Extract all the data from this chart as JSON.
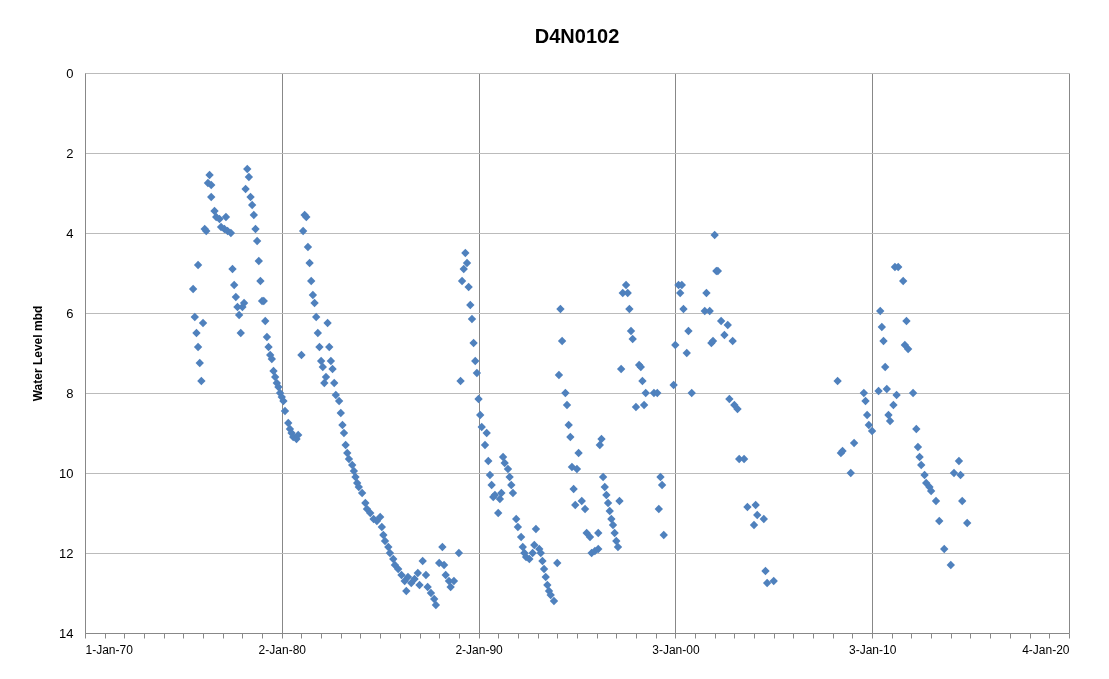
{
  "chart_data": {
    "type": "scatter",
    "title": "D4N0102",
    "ylabel": "Water Level mbd",
    "xlim": [
      "1970-01-01",
      "2020-01-04"
    ],
    "ylim": [
      14,
      0
    ],
    "yticks": [
      0,
      2,
      4,
      6,
      8,
      10,
      12,
      14
    ],
    "xticks": [
      {
        "value": "1970-01-01",
        "label": "1-Jan-70"
      },
      {
        "value": "1971-01-01",
        "label": null
      },
      {
        "value": "1972-01-01",
        "label": null
      },
      {
        "value": "1973-01-01",
        "label": null
      },
      {
        "value": "1974-01-01",
        "label": null
      },
      {
        "value": "1975-01-01",
        "label": null
      },
      {
        "value": "1976-01-01",
        "label": null
      },
      {
        "value": "1977-01-01",
        "label": null
      },
      {
        "value": "1978-01-01",
        "label": null
      },
      {
        "value": "1979-01-01",
        "label": null
      },
      {
        "value": "1980-01-02",
        "label": "2-Jan-80"
      },
      {
        "value": "1981-01-01",
        "label": null
      },
      {
        "value": "1982-01-01",
        "label": null
      },
      {
        "value": "1983-01-01",
        "label": null
      },
      {
        "value": "1984-01-01",
        "label": null
      },
      {
        "value": "1985-01-01",
        "label": null
      },
      {
        "value": "1986-01-01",
        "label": null
      },
      {
        "value": "1987-01-01",
        "label": null
      },
      {
        "value": "1988-01-01",
        "label": null
      },
      {
        "value": "1989-01-01",
        "label": null
      },
      {
        "value": "1990-01-02",
        "label": "2-Jan-90"
      },
      {
        "value": "1991-01-01",
        "label": null
      },
      {
        "value": "1992-01-01",
        "label": null
      },
      {
        "value": "1993-01-01",
        "label": null
      },
      {
        "value": "1994-01-01",
        "label": null
      },
      {
        "value": "1995-01-01",
        "label": null
      },
      {
        "value": "1996-01-01",
        "label": null
      },
      {
        "value": "1997-01-01",
        "label": null
      },
      {
        "value": "1998-01-01",
        "label": null
      },
      {
        "value": "1999-01-01",
        "label": null
      },
      {
        "value": "2000-01-03",
        "label": "3-Jan-00"
      },
      {
        "value": "2001-01-01",
        "label": null
      },
      {
        "value": "2002-01-01",
        "label": null
      },
      {
        "value": "2003-01-01",
        "label": null
      },
      {
        "value": "2004-01-01",
        "label": null
      },
      {
        "value": "2005-01-01",
        "label": null
      },
      {
        "value": "2006-01-01",
        "label": null
      },
      {
        "value": "2007-01-01",
        "label": null
      },
      {
        "value": "2008-01-01",
        "label": null
      },
      {
        "value": "2009-01-01",
        "label": null
      },
      {
        "value": "2010-01-03",
        "label": "3-Jan-10"
      },
      {
        "value": "2011-01-01",
        "label": null
      },
      {
        "value": "2012-01-01",
        "label": null
      },
      {
        "value": "2013-01-01",
        "label": null
      },
      {
        "value": "2014-01-01",
        "label": null
      },
      {
        "value": "2015-01-01",
        "label": null
      },
      {
        "value": "2016-01-01",
        "label": null
      },
      {
        "value": "2017-01-01",
        "label": null
      },
      {
        "value": "2018-01-01",
        "label": null
      },
      {
        "value": "2019-01-01",
        "label": null
      },
      {
        "value": "2020-01-04",
        "label": "4-Jan-20"
      }
    ],
    "grid": true,
    "legend": false,
    "marker": "diamond",
    "x": [
      "1975-07",
      "1975-08",
      "1975-09",
      "1975-10",
      "1975-10",
      "1975-11",
      "1975-12",
      "1976-01",
      "1976-02",
      "1976-03",
      "1976-04",
      "1976-05",
      "1976-06",
      "1976-06",
      "1976-08",
      "1976-09",
      "1976-11",
      "1976-12",
      "1977-02",
      "1977-03",
      "1977-04",
      "1977-06",
      "1977-07",
      "1977-08",
      "1977-09",
      "1977-10",
      "1977-11",
      "1977-12",
      "1978-01",
      "1978-02",
      "1978-03",
      "1978-04",
      "1978-05",
      "1978-06",
      "1978-07",
      "1978-08",
      "1978-09",
      "1978-10",
      "1978-11",
      "1978-12",
      "1979-01",
      "1979-02",
      "1979-03",
      "1979-04",
      "1979-05",
      "1979-06",
      "1979-07",
      "1979-08",
      "1979-09",
      "1979-10",
      "1979-11",
      "1979-12",
      "1980-01",
      "1980-02",
      "1980-03",
      "1980-05",
      "1980-06",
      "1980-07",
      "1980-08",
      "1980-10",
      "1980-11",
      "1981-01",
      "1981-02",
      "1981-03",
      "1981-04",
      "1981-05",
      "1981-06",
      "1981-07",
      "1981-08",
      "1981-09",
      "1981-10",
      "1981-11",
      "1981-12",
      "1982-01",
      "1982-02",
      "1982-03",
      "1982-04",
      "1982-05",
      "1982-06",
      "1982-07",
      "1982-08",
      "1982-09",
      "1982-10",
      "1982-12",
      "1983-01",
      "1983-02",
      "1983-03",
      "1983-04",
      "1983-05",
      "1983-06",
      "1983-08",
      "1983-09",
      "1983-10",
      "1983-11",
      "1983-12",
      "1984-02",
      "1984-04",
      "1984-05",
      "1984-07",
      "1984-09",
      "1984-11",
      "1985-01",
      "1985-02",
      "1985-03",
      "1985-04",
      "1985-06",
      "1985-07",
      "1985-09",
      "1985-10",
      "1985-12",
      "1986-02",
      "1986-04",
      "1986-05",
      "1986-06",
      "1986-08",
      "1986-10",
      "1986-12",
      "1987-01",
      "1987-03",
      "1987-05",
      "1987-06",
      "1987-08",
      "1987-10",
      "1987-11",
      "1988-01",
      "1988-03",
      "1988-04",
      "1988-05",
      "1988-07",
      "1988-08",
      "1988-10",
      "1989-01",
      "1989-02",
      "1989-03",
      "1989-04",
      "1989-05",
      "1989-06",
      "1989-07",
      "1989-08",
      "1989-09",
      "1989-10",
      "1989-11",
      "1989-12",
      "1990-01",
      "1990-02",
      "1990-03",
      "1990-05",
      "1990-06",
      "1990-07",
      "1990-08",
      "1990-09",
      "1990-10",
      "1990-11",
      "1991-01",
      "1991-02",
      "1991-03",
      "1991-04",
      "1991-05",
      "1991-07",
      "1991-08",
      "1991-09",
      "1991-10",
      "1991-12",
      "1992-01",
      "1992-03",
      "1992-04",
      "1992-05",
      "1992-06",
      "1992-08",
      "1992-10",
      "1992-11",
      "1992-12",
      "1993-02",
      "1993-03",
      "1993-04",
      "1993-05",
      "1993-06",
      "1993-07",
      "1993-08",
      "1993-09",
      "1993-11",
      "1994-01",
      "1994-02",
      "1994-03",
      "1994-04",
      "1994-06",
      "1994-07",
      "1994-08",
      "1994-09",
      "1994-10",
      "1994-11",
      "1994-12",
      "1995-01",
      "1995-02",
      "1995-04",
      "1995-06",
      "1995-07",
      "1995-09",
      "1995-10",
      "1995-12",
      "1996-02",
      "1996-02",
      "1996-03",
      "1996-04",
      "1996-05",
      "1996-06",
      "1996-07",
      "1996-08",
      "1996-09",
      "1996-10",
      "1996-11",
      "1996-12",
      "1997-01",
      "1997-02",
      "1997-03",
      "1997-04",
      "1997-05",
      "1997-07",
      "1997-08",
      "1997-09",
      "1997-10",
      "1997-11",
      "1998-01",
      "1998-03",
      "1998-04",
      "1998-05",
      "1998-06",
      "1998-07",
      "1998-12",
      "1999-02",
      "1999-03",
      "1999-04",
      "1999-05",
      "1999-06",
      "1999-12",
      "2000-01",
      "2000-03",
      "2000-04",
      "2000-05",
      "2000-06",
      "2000-08",
      "2000-09",
      "2000-11",
      "2001-07",
      "2001-08",
      "2001-10",
      "2001-11",
      "2001-12",
      "2002-01",
      "2002-02",
      "2002-03",
      "2002-05",
      "2002-07",
      "2002-09",
      "2002-10",
      "2002-12",
      "2003-01",
      "2003-03",
      "2003-04",
      "2003-07",
      "2003-09",
      "2004-01",
      "2004-02",
      "2004-03",
      "2004-07",
      "2004-08",
      "2004-09",
      "2005-01",
      "2008-04",
      "2008-06",
      "2008-07",
      "2008-12",
      "2009-02",
      "2009-08",
      "2009-09",
      "2009-10",
      "2009-11",
      "2010-01",
      "2010-05",
      "2010-06",
      "2010-07",
      "2010-08",
      "2010-09",
      "2010-10",
      "2010-11",
      "2010-12",
      "2011-02",
      "2011-03",
      "2011-04",
      "2011-05",
      "2011-08",
      "2011-09",
      "2011-10",
      "2011-11",
      "2012-02",
      "2012-04",
      "2012-05",
      "2012-06",
      "2012-07",
      "2012-09",
      "2012-10",
      "2012-12",
      "2013-01",
      "2013-04",
      "2013-06",
      "2013-09",
      "2014-01",
      "2014-03",
      "2014-06",
      "2014-07",
      "2014-08",
      "2014-11"
    ],
    "series": [
      {
        "color": "#4f81bd",
        "values": [
          5.4,
          6.1,
          6.5,
          6.85,
          4.8,
          7.25,
          7.7,
          6.25,
          3.9,
          3.95,
          2.75,
          2.55,
          2.8,
          3.1,
          3.45,
          3.6,
          3.65,
          3.85,
          3.9,
          3.6,
          3.95,
          4.0,
          4.9,
          5.3,
          5.6,
          5.85,
          6.05,
          6.5,
          5.85,
          5.75,
          2.9,
          2.4,
          2.6,
          3.1,
          3.3,
          3.55,
          3.9,
          4.2,
          4.7,
          5.2,
          5.7,
          5.7,
          6.2,
          6.6,
          6.85,
          7.05,
          7.15,
          7.45,
          7.6,
          7.75,
          7.85,
          8.0,
          8.1,
          8.2,
          8.45,
          8.75,
          8.9,
          9.0,
          9.1,
          9.15,
          9.05,
          7.05,
          3.95,
          3.55,
          3.6,
          4.35,
          4.75,
          5.2,
          5.55,
          5.75,
          6.1,
          6.5,
          6.85,
          7.2,
          7.35,
          7.75,
          7.6,
          6.25,
          6.85,
          7.2,
          7.4,
          7.75,
          8.05,
          8.2,
          8.5,
          8.8,
          9.0,
          9.3,
          9.5,
          9.65,
          9.8,
          9.95,
          10.1,
          10.25,
          10.35,
          10.5,
          10.75,
          10.9,
          11.0,
          11.15,
          11.2,
          11.1,
          11.35,
          11.55,
          11.7,
          11.85,
          12.0,
          12.15,
          12.3,
          12.4,
          12.55,
          12.7,
          12.95,
          12.6,
          12.75,
          12.65,
          12.5,
          12.8,
          12.2,
          12.55,
          12.85,
          13.0,
          13.15,
          13.3,
          12.25,
          11.85,
          12.3,
          12.55,
          12.7,
          12.85,
          12.7,
          12.0,
          7.7,
          5.2,
          4.9,
          4.5,
          4.75,
          5.35,
          5.8,
          6.15,
          6.75,
          7.2,
          7.5,
          8.15,
          8.55,
          8.85,
          9.3,
          9.0,
          9.7,
          10.05,
          10.3,
          10.6,
          10.55,
          11.0,
          10.65,
          10.5,
          9.6,
          9.75,
          9.9,
          10.1,
          10.3,
          10.5,
          11.15,
          11.35,
          11.6,
          11.85,
          12.0,
          12.1,
          12.15,
          12.0,
          11.8,
          11.4,
          11.9,
          12.0,
          12.2,
          12.4,
          12.6,
          12.8,
          12.95,
          13.05,
          13.2,
          12.25,
          7.55,
          5.9,
          6.7,
          8.0,
          8.3,
          8.8,
          9.1,
          9.85,
          10.4,
          10.8,
          9.9,
          9.5,
          10.7,
          10.9,
          11.5,
          11.6,
          12.0,
          11.95,
          11.5,
          11.9,
          9.3,
          9.15,
          10.1,
          10.35,
          10.55,
          10.75,
          10.95,
          11.15,
          11.3,
          11.5,
          11.7,
          11.85,
          10.7,
          7.4,
          5.5,
          5.3,
          5.5,
          5.9,
          6.45,
          6.65,
          8.35,
          7.3,
          7.35,
          7.7,
          8.3,
          8.0,
          8.0,
          8.0,
          10.9,
          10.1,
          10.3,
          11.55,
          7.8,
          6.8,
          5.3,
          5.5,
          5.3,
          5.9,
          7.0,
          6.45,
          8.0,
          5.95,
          5.5,
          5.95,
          6.75,
          6.7,
          4.05,
          4.95,
          4.95,
          6.2,
          6.55,
          6.3,
          8.15,
          6.7,
          8.3,
          8.4,
          9.65,
          9.65,
          10.85,
          11.3,
          10.8,
          11.05,
          11.15,
          12.45,
          12.75,
          12.7,
          7.7,
          9.5,
          9.45,
          10.0,
          9.25,
          8.0,
          8.2,
          8.55,
          8.8,
          8.95,
          7.95,
          5.95,
          6.35,
          6.7,
          7.35,
          7.9,
          8.55,
          8.7,
          8.3,
          4.85,
          8.05,
          4.85,
          5.2,
          6.8,
          6.2,
          6.9,
          8.0,
          8.9,
          9.35,
          9.6,
          9.8,
          10.05,
          10.25,
          10.35,
          10.45,
          10.7,
          11.2,
          11.9,
          12.3,
          10.0,
          9.7,
          10.05,
          10.7,
          11.25
        ]
      }
    ]
  }
}
